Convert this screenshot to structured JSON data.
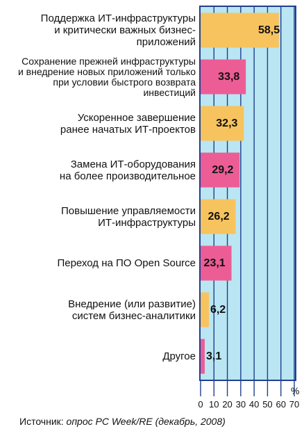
{
  "chart_data": {
    "type": "bar",
    "orientation": "horizontal",
    "categories": [
      "Поддержка ИТ-инфраструктуры\nи критически важных бизнес-\nприложений",
      "Сохранение прежней инфраструктуры\nи внедрение новых приложений только\nпри условии быстрого возврата\nинвестиций",
      "Ускоренное завершение\nранее начатых ИТ-проектов",
      "Замена ИТ-оборудования\nна более производительное",
      "Повышение управляемости\nИТ-инфраструктуры",
      "Переход на ПО Open Source",
      "Внедрение (или развитие)\nсистем бизнес-аналитики",
      "Другое"
    ],
    "values": [
      58.5,
      33.8,
      32.3,
      29.2,
      26.2,
      23.1,
      6.2,
      3.1
    ],
    "value_labels": [
      "58,5",
      "33,8",
      "32,3",
      "29,2",
      "26,2",
      "23,1",
      "6,2",
      "3,1"
    ],
    "bar_colors": [
      "#f7c35e",
      "#ec5d96",
      "#f7c35e",
      "#ec5d96",
      "#f7c35e",
      "#ec5d96",
      "#f7c35e",
      "#ec5d96"
    ],
    "xlim": [
      0,
      70
    ],
    "xticks": [
      0,
      10,
      20,
      30,
      40,
      50,
      60,
      70
    ],
    "unit": "%",
    "grid": true,
    "frame_color": "#1f3f8f",
    "background_color": "#b9e6f2"
  },
  "source": {
    "prefix": "Источник: ",
    "text": "опрос PC Week/RE (декабрь, 2008)"
  }
}
